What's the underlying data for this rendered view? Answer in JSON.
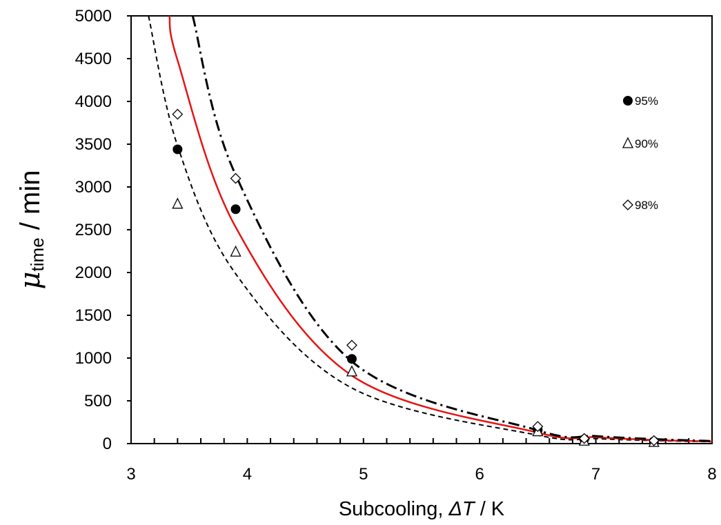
{
  "chart_data": {
    "type": "scatter",
    "xlabel": "Subcooling, ΔT / K",
    "xlabel_parts": [
      "Subcooling, ",
      "ΔT",
      " / K"
    ],
    "ylabel_parts": [
      "μ",
      "time",
      " / min"
    ],
    "xlim": [
      3,
      8
    ],
    "ylim": [
      0,
      5000
    ],
    "xticks": [
      3,
      4,
      5,
      6,
      7,
      8
    ],
    "yticks": [
      0,
      500,
      1000,
      1500,
      2000,
      2500,
      3000,
      3500,
      4000,
      4500,
      5000
    ],
    "grid": false,
    "legend_position": "right",
    "series": [
      {
        "name": "95%",
        "marker": "filled-circle",
        "x": [
          3.4,
          3.9,
          4.9,
          6.5,
          6.9,
          7.5
        ],
        "y": [
          3440,
          2740,
          990,
          160,
          50,
          25
        ]
      },
      {
        "name": "90%",
        "marker": "open-triangle",
        "x": [
          3.4,
          3.9,
          4.9,
          6.5,
          6.9,
          7.5
        ],
        "y": [
          2800,
          2240,
          840,
          140,
          30,
          15
        ]
      },
      {
        "name": "98%",
        "marker": "open-diamond",
        "x": [
          3.4,
          3.9,
          4.9,
          6.5,
          6.9,
          7.5
        ],
        "y": [
          3850,
          3100,
          1150,
          200,
          60,
          35
        ]
      }
    ],
    "fit_curves": [
      {
        "style": "short-dash",
        "color": "#000000",
        "x": [
          3.15,
          3.4,
          3.9,
          4.9,
          6.5,
          7.0,
          7.5,
          8.0
        ],
        "y": [
          5000,
          3480,
          1985,
          650,
          98,
          58,
          35,
          22
        ]
      },
      {
        "style": "solid",
        "color": "#e61414",
        "x": [
          3.33,
          3.4,
          3.9,
          4.9,
          6.5,
          7.0,
          7.5,
          8.0
        ],
        "y": [
          5000,
          4480,
          2530,
          795,
          128,
          75,
          42,
          25
        ]
      },
      {
        "style": "dash-dot",
        "color": "#000000",
        "x": [
          3.53,
          3.9,
          4.9,
          6.5,
          7.0,
          7.5,
          8.0
        ],
        "y": [
          5000,
          3140,
          960,
          155,
          88,
          52,
          30
        ]
      }
    ]
  }
}
